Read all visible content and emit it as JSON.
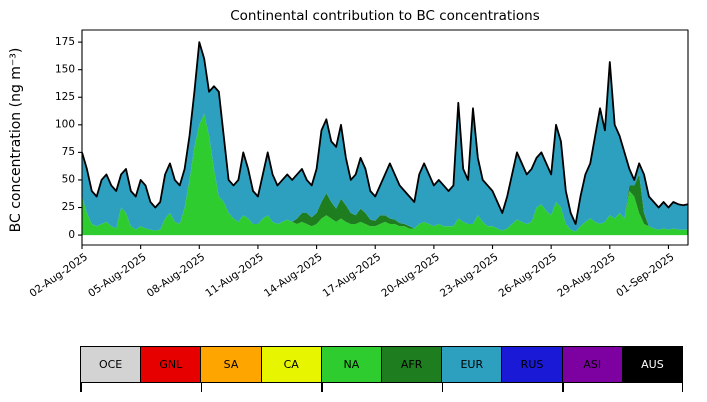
{
  "chart_data": {
    "type": "area",
    "stacked": true,
    "title": "Continental contribution to BC concentrations",
    "ylabel": "BC concentration (ng m⁻³)",
    "xlabel": "",
    "ylim": [
      -9,
      186
    ],
    "yticks": [
      0,
      25,
      50,
      75,
      100,
      125,
      150,
      175
    ],
    "x_count": 125,
    "xticks_index": [
      0,
      12,
      24,
      36,
      48,
      60,
      72,
      84,
      96,
      108,
      120
    ],
    "xtick_labels": [
      "02-Aug-2025",
      "05-Aug-2025",
      "08-Aug-2025",
      "11-Aug-2025",
      "14-Aug-2025",
      "17-Aug-2025",
      "20-Aug-2025",
      "23-Aug-2025",
      "26-Aug-2025",
      "29-Aug-2025",
      "01-Sep-2025"
    ],
    "grid": false,
    "line_color": "#000000",
    "series": [
      {
        "name": "NA",
        "color": "#2ecc2e",
        "values": [
          35,
          20,
          10,
          8,
          10,
          12,
          8,
          6,
          25,
          20,
          8,
          5,
          8,
          6,
          5,
          4,
          5,
          15,
          20,
          12,
          10,
          25,
          50,
          80,
          100,
          110,
          90,
          60,
          35,
          30,
          20,
          15,
          12,
          18,
          15,
          10,
          10,
          15,
          18,
          12,
          10,
          12,
          14,
          12,
          10,
          12,
          10,
          8,
          10,
          15,
          18,
          15,
          12,
          15,
          12,
          10,
          10,
          12,
          10,
          8,
          8,
          10,
          12,
          10,
          10,
          8,
          8,
          6,
          6,
          10,
          12,
          10,
          8,
          10,
          8,
          8,
          8,
          15,
          12,
          10,
          10,
          18,
          12,
          8,
          8,
          6,
          4,
          6,
          10,
          14,
          12,
          10,
          12,
          25,
          28,
          22,
          18,
          30,
          25,
          10,
          5,
          3,
          8,
          12,
          15,
          12,
          10,
          12,
          18,
          15,
          20,
          15,
          40,
          35,
          20,
          10,
          8,
          6,
          5,
          6,
          5,
          6,
          5,
          5,
          5
        ]
      },
      {
        "name": "AFR",
        "color": "#1e7d1e",
        "values": [
          0,
          0,
          0,
          0,
          0,
          0,
          0,
          0,
          0,
          0,
          0,
          0,
          0,
          0,
          0,
          0,
          0,
          0,
          0,
          0,
          0,
          0,
          0,
          0,
          0,
          0,
          0,
          0,
          0,
          0,
          0,
          0,
          0,
          0,
          0,
          0,
          0,
          0,
          0,
          0,
          0,
          0,
          0,
          0,
          5,
          8,
          10,
          8,
          10,
          15,
          20,
          15,
          12,
          18,
          15,
          10,
          8,
          12,
          10,
          6,
          5,
          8,
          6,
          5,
          4,
          3,
          2,
          2,
          0,
          0,
          0,
          0,
          0,
          0,
          0,
          0,
          0,
          0,
          0,
          0,
          0,
          0,
          0,
          0,
          0,
          0,
          0,
          0,
          0,
          0,
          0,
          0,
          0,
          0,
          0,
          0,
          0,
          0,
          0,
          0,
          0,
          0,
          0,
          0,
          0,
          0,
          0,
          0,
          0,
          0,
          0,
          0,
          5,
          10,
          35,
          10,
          0,
          0,
          0,
          0,
          0,
          0,
          0,
          0,
          0
        ]
      },
      {
        "name": "EUR",
        "color": "#2da0bf",
        "values": [
          40,
          40,
          30,
          27,
          40,
          43,
          37,
          34,
          30,
          40,
          32,
          30,
          42,
          39,
          25,
          21,
          25,
          40,
          45,
          38,
          35,
          35,
          40,
          50,
          75,
          50,
          40,
          75,
          95,
          60,
          30,
          30,
          38,
          57,
          45,
          30,
          25,
          40,
          57,
          43,
          35,
          38,
          41,
          38,
          40,
          40,
          30,
          29,
          40,
          65,
          67,
          55,
          56,
          67,
          43,
          30,
          37,
          46,
          40,
          26,
          22,
          27,
          37,
          50,
          41,
          34,
          30,
          27,
          24,
          45,
          53,
          45,
          37,
          40,
          37,
          32,
          37,
          105,
          48,
          40,
          105,
          52,
          38,
          37,
          32,
          24,
          16,
          29,
          45,
          61,
          53,
          45,
          48,
          45,
          47,
          43,
          37,
          70,
          60,
          30,
          15,
          7,
          27,
          43,
          50,
          78,
          105,
          83,
          139,
          85,
          70,
          60,
          15,
          5,
          10,
          35,
          27,
          24,
          20,
          24,
          20,
          24,
          23,
          22,
          23
        ]
      }
    ],
    "total_outline": true,
    "legend": [
      {
        "label": "OCE",
        "color": "#d3d3d3",
        "text_color": "#000000"
      },
      {
        "label": "GNL",
        "color": "#e60000",
        "text_color": "#000000"
      },
      {
        "label": "SA",
        "color": "#ffa500",
        "text_color": "#000000"
      },
      {
        "label": "CA",
        "color": "#e8f500",
        "text_color": "#000000"
      },
      {
        "label": "NA",
        "color": "#2ecc2e",
        "text_color": "#000000"
      },
      {
        "label": "AFR",
        "color": "#1e7d1e",
        "text_color": "#000000"
      },
      {
        "label": "EUR",
        "color": "#2da0bf",
        "text_color": "#000000"
      },
      {
        "label": "RUS",
        "color": "#1a1ad6",
        "text_color": "#000000"
      },
      {
        "label": "ASI",
        "color": "#7d00a0",
        "text_color": "#000000"
      },
      {
        "label": "AUS",
        "color": "#000000",
        "text_color": "#ffffff"
      }
    ]
  }
}
